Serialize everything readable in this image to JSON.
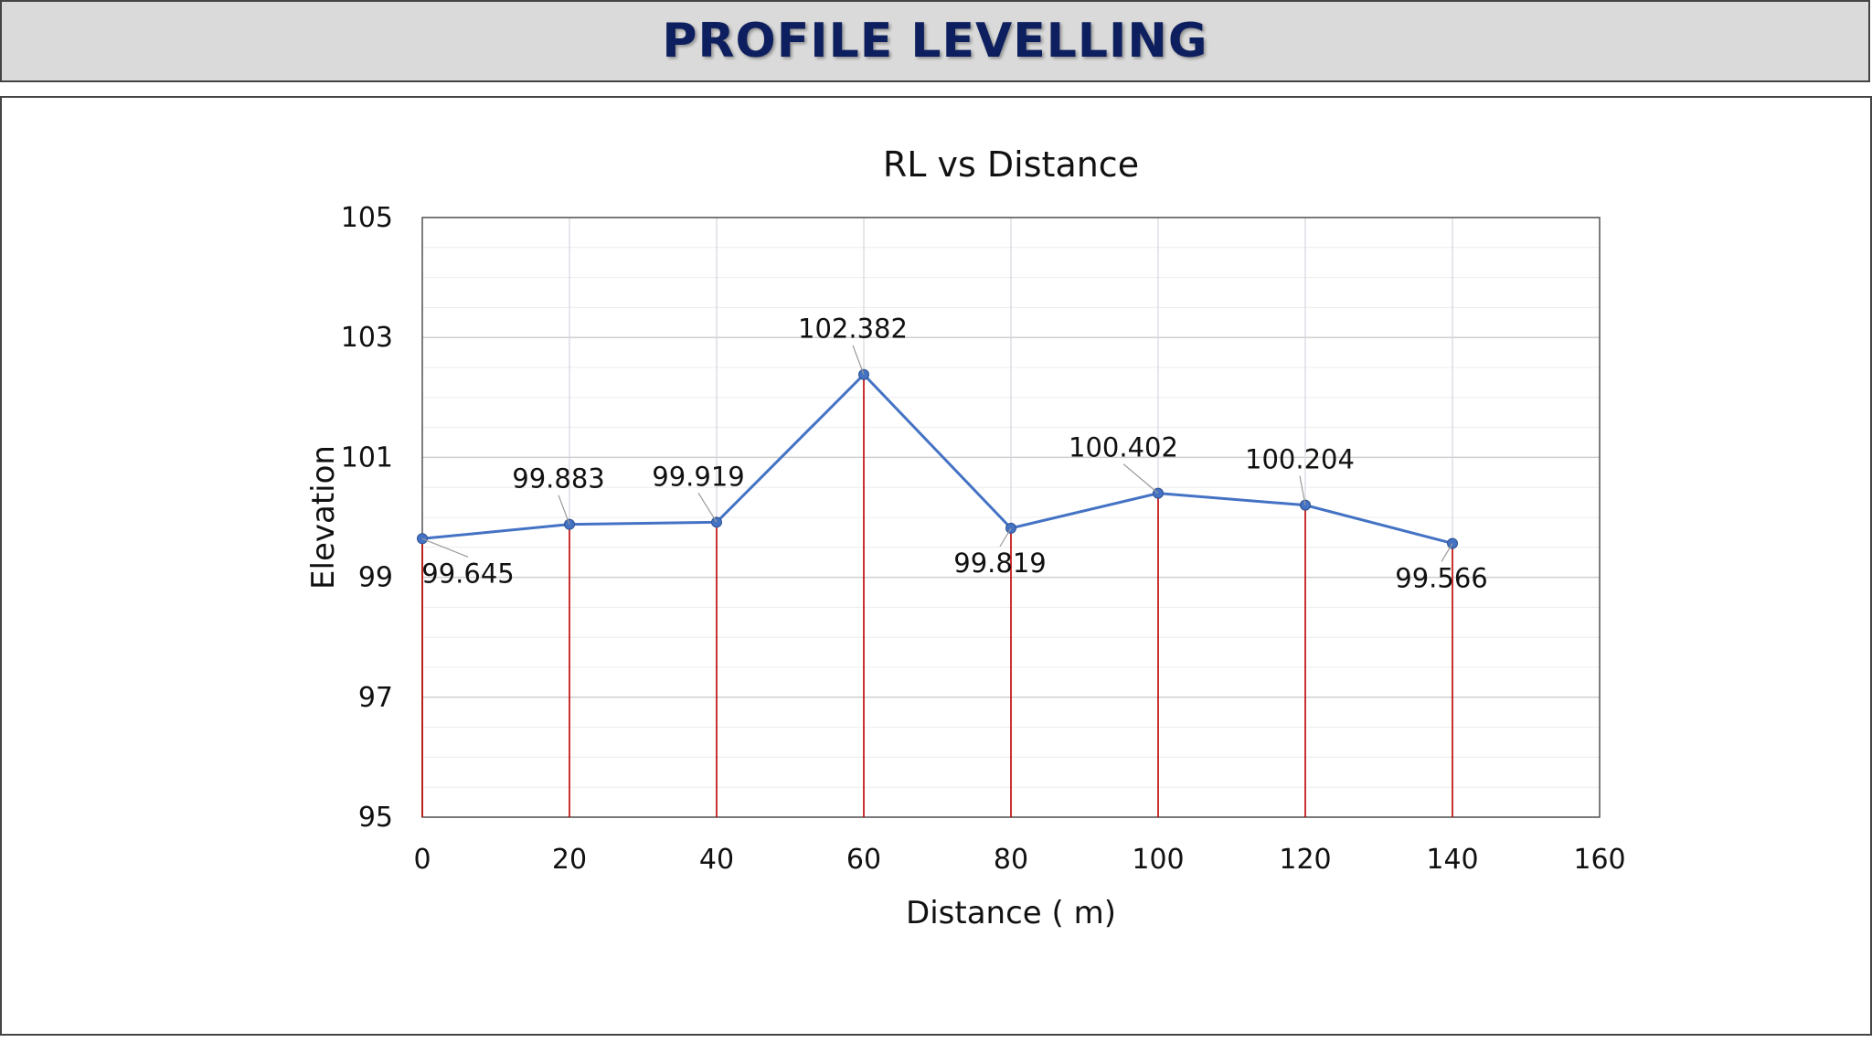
{
  "banner": {
    "title": "PROFILE LEVELLING"
  },
  "chart_data": {
    "type": "line",
    "title": "RL vs Distance",
    "xlabel": "Distance ( m)",
    "ylabel": "Elevation",
    "xlim": [
      0,
      160
    ],
    "ylim": [
      95,
      105
    ],
    "x_ticks": [
      0,
      20,
      40,
      60,
      80,
      100,
      120,
      140,
      160
    ],
    "y_ticks": [
      95,
      97,
      99,
      101,
      103,
      105
    ],
    "grid": true,
    "series": [
      {
        "x": [
          0,
          20,
          40,
          60,
          80,
          100,
          120,
          140
        ],
        "y": [
          99.645,
          99.883,
          99.919,
          102.382,
          99.819,
          100.402,
          100.204,
          99.566
        ],
        "labels": [
          "99.645",
          "99.883",
          "99.919",
          "102.382",
          "99.819",
          "100.402",
          "100.204",
          "99.566"
        ],
        "label_position": [
          "below",
          "above",
          "above",
          "above",
          "below",
          "above",
          "above",
          "below"
        ],
        "color": "#4472c4"
      }
    ],
    "drop_lines": {
      "color": "#c00000",
      "to": 95
    },
    "colors": {
      "grid": "#d9d9d9",
      "line": "#4472c4",
      "drop": "#c00000"
    }
  }
}
